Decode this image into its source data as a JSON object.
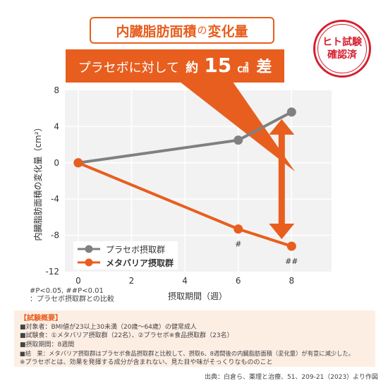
{
  "header": {
    "title_main": "内臓脂肪面積",
    "title_no": "の",
    "title_rest": "変化量",
    "callout_prefix": "プラセボに対して",
    "callout_approx": "約",
    "callout_value": "15",
    "callout_unit": "㎠",
    "callout_suffix": "差"
  },
  "badge": {
    "line1": "ヒト試験",
    "line2": "確認済"
  },
  "chart_data": {
    "type": "line",
    "x": [
      0,
      6,
      8
    ],
    "series": [
      {
        "name": "プラセボ摂取群",
        "values": [
          0,
          2.5,
          5.6
        ],
        "color": "#808080"
      },
      {
        "name": "メタバリア摂取群",
        "values": [
          0,
          -7.3,
          -9.2
        ],
        "color": "#e85e1e"
      }
    ],
    "xlabel": "摂取期間（週）",
    "ylabel": "内臓脂肪面積の変化量（cm²）",
    "xlim": [
      -0.5,
      9.5
    ],
    "ylim": [
      -12,
      8
    ],
    "xticks": [
      0,
      2,
      4,
      6,
      8
    ],
    "yticks": [
      8,
      4,
      0,
      -4,
      -8,
      -12
    ],
    "annotations": [
      {
        "x": 6,
        "text": "#"
      },
      {
        "x": 8,
        "text": "##"
      }
    ],
    "grid": true,
    "legend_position": "bottom-left"
  },
  "notes": {
    "line1": "#P<0.05, ##P<0.01",
    "line2": "：プラセボ摂取群との比較"
  },
  "summary": {
    "title": "【試験概要】",
    "lines": [
      "■対象者：BMI値が23以上30未満（20歳〜64歳）の健常成人",
      "■試験食：①メタバリア摂取群（22名）、②プラセボ※食品摂取群（23名）",
      "■摂取期間：8週間",
      "■結　果：メタバリア摂取群はプラセボ食品摂取群と比較して、摂取6、8週間後の内臓脂肪面積（変化量）が有意に減少した。",
      "※プラセボとは、効果を発揮する成分が含まれない、見た目や味がそっくりなもののこと"
    ]
  },
  "source": "出典：白倉ら、薬理と治療、51、209-21（2023）より作図",
  "colors": {
    "accent": "#e85e1e",
    "placebo": "#808080",
    "badge": "#d4202f"
  }
}
